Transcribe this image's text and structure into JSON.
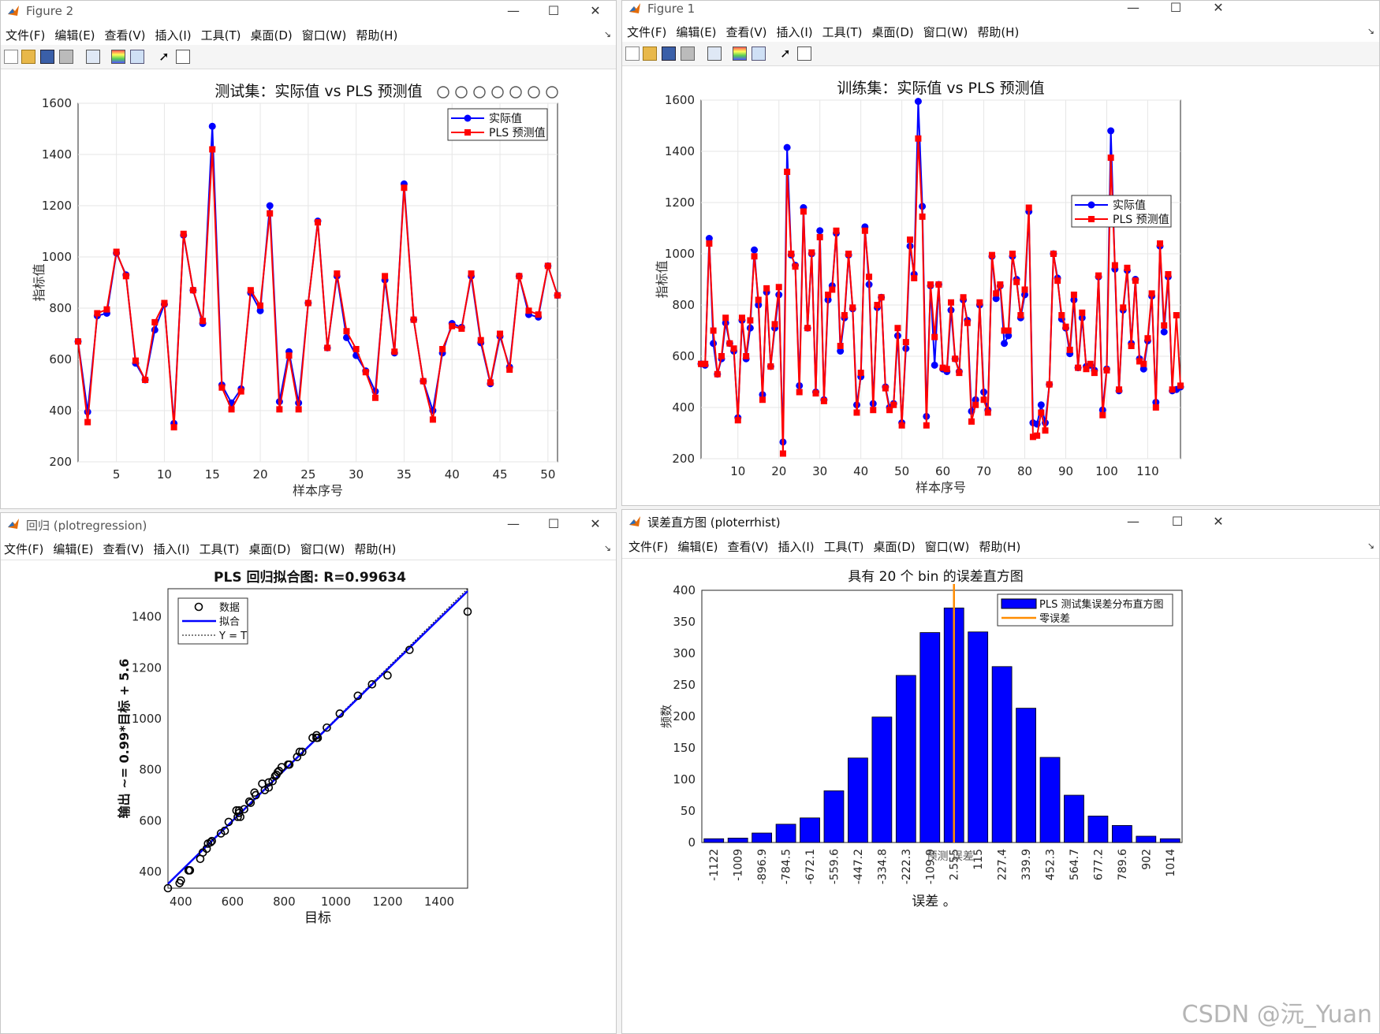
{
  "watermark": "CSDN @沅_Yuan",
  "menus": [
    "文件(F)",
    "编辑(E)",
    "查看(V)",
    "插入(I)",
    "工具(T)",
    "桌面(D)",
    "窗口(W)",
    "帮助(H)"
  ],
  "win_controls": {
    "minimize": "—",
    "maximize": "☐",
    "close": "✕",
    "dock": "↘"
  },
  "windows": {
    "fig2": {
      "title": "Figure 2"
    },
    "fig1": {
      "title": "Figure 1"
    },
    "regression": {
      "title": "回归 (plotregression)"
    },
    "errhist": {
      "title": "误差直方图 (ploterrhist)"
    }
  },
  "chart_data": [
    {
      "id": "test",
      "type": "line",
      "title": "测试集：实际值 vs PLS 预测值",
      "xlabel": "样本序号",
      "ylabel": "指标值",
      "xlim": [
        1,
        51
      ],
      "ylim": [
        200,
        1600
      ],
      "xticks": [
        5,
        10,
        15,
        20,
        25,
        30,
        35,
        40,
        45,
        50
      ],
      "yticks": [
        200,
        400,
        600,
        800,
        1000,
        1200,
        1400,
        1600
      ],
      "grid": true,
      "legend_position": "top-right",
      "colors": {
        "actual": "#0000ff",
        "pred": "#ff0000"
      },
      "series": [
        {
          "name": "实际值",
          "marker": "circle",
          "values": [
            670,
            395,
            770,
            780,
            1015,
            930,
            585,
            520,
            715,
            815,
            350,
            1085,
            870,
            740,
            1510,
            500,
            430,
            485,
            860,
            790,
            1200,
            435,
            630,
            430,
            820,
            1140,
            645,
            925,
            685,
            615,
            555,
            475,
            910,
            625,
            1285,
            755,
            515,
            400,
            625,
            740,
            725,
            925,
            665,
            505,
            690,
            570,
            925,
            775,
            765,
            965,
            850
          ]
        },
        {
          "name": "PLS 预测值",
          "marker": "square",
          "values": [
            670,
            355,
            780,
            795,
            1020,
            925,
            595,
            520,
            745,
            820,
            335,
            1090,
            870,
            750,
            1420,
            490,
            405,
            475,
            870,
            810,
            1170,
            405,
            615,
            405,
            820,
            1135,
            645,
            935,
            710,
            640,
            550,
            450,
            925,
            630,
            1270,
            755,
            515,
            365,
            640,
            730,
            720,
            935,
            675,
            510,
            700,
            560,
            925,
            790,
            775,
            965,
            850
          ]
        }
      ]
    },
    {
      "id": "train",
      "type": "line",
      "title": "训练集：实际值 vs PLS 预测值",
      "xlabel": "样本序号",
      "ylabel": "指标值",
      "xlim": [
        1,
        118
      ],
      "ylim": [
        200,
        1600
      ],
      "xticks": [
        10,
        20,
        30,
        40,
        50,
        60,
        70,
        80,
        90,
        100,
        110
      ],
      "yticks": [
        200,
        400,
        600,
        800,
        1000,
        1200,
        1400,
        1600
      ],
      "grid": true,
      "legend_position": "right",
      "colors": {
        "actual": "#0000ff",
        "pred": "#ff0000"
      },
      "series": [
        {
          "name": "实际值",
          "marker": "circle",
          "values": [
            570,
            565,
            1060,
            650,
            530,
            590,
            730,
            650,
            620,
            360,
            740,
            590,
            710,
            1015,
            800,
            450,
            850,
            560,
            710,
            840,
            265,
            1415,
            995,
            955,
            485,
            1180,
            710,
            1000,
            460,
            1090,
            430,
            820,
            875,
            1080,
            620,
            750,
            995,
            785,
            410,
            520,
            1105,
            880,
            415,
            790,
            830,
            480,
            400,
            415,
            680,
            340,
            630,
            1030,
            920,
            1595,
            1185,
            365,
            875,
            565,
            880,
            550,
            540,
            780,
            590,
            540,
            820,
            740,
            385,
            430,
            800,
            460,
            390,
            990,
            825,
            875,
            650,
            680,
            990,
            900,
            750,
            840,
            1165,
            340,
            335,
            410,
            340,
            490,
            1000,
            905,
            745,
            710,
            610,
            820,
            555,
            750,
            560,
            565,
            545,
            910,
            390,
            550,
            1480,
            940,
            465,
            780,
            935,
            650,
            900,
            590,
            550,
            660,
            835,
            420,
            1030,
            695,
            910,
            465,
            470,
            480
          ]
        },
        {
          "name": "PLS 预测值",
          "marker": "square",
          "values": [
            570,
            570,
            1040,
            700,
            530,
            600,
            750,
            650,
            630,
            350,
            750,
            600,
            740,
            990,
            820,
            430,
            865,
            560,
            725,
            870,
            220,
            1320,
            1000,
            950,
            460,
            1165,
            710,
            1005,
            455,
            1065,
            425,
            840,
            860,
            1090,
            640,
            760,
            1000,
            790,
            380,
            535,
            1090,
            910,
            390,
            800,
            830,
            475,
            390,
            410,
            710,
            330,
            655,
            1055,
            905,
            1450,
            1145,
            330,
            880,
            675,
            880,
            555,
            550,
            810,
            590,
            535,
            830,
            730,
            345,
            410,
            810,
            430,
            380,
            995,
            845,
            880,
            700,
            700,
            1000,
            890,
            760,
            860,
            1180,
            285,
            290,
            380,
            310,
            490,
            1000,
            895,
            760,
            715,
            625,
            840,
            555,
            770,
            550,
            570,
            535,
            915,
            370,
            545,
            1375,
            955,
            470,
            790,
            945,
            640,
            895,
            580,
            570,
            670,
            845,
            400,
            1040,
            720,
            920,
            470,
            760,
            485
          ]
        }
      ]
    },
    {
      "id": "regression",
      "type": "scatter",
      "title": "PLS 回归拟合图: R=0.99634",
      "xlabel": "目标",
      "ylabel": "输出 ~= 0.99*目标 + 5.6",
      "xlim": [
        350,
        1510
      ],
      "ylim": [
        335,
        1510
      ],
      "xticks": [
        400,
        600,
        800,
        1000,
        1200,
        1400
      ],
      "yticks": [
        400,
        600,
        800,
        1000,
        1200,
        1400
      ],
      "grid": false,
      "legend_position": "top-left",
      "legend": [
        "数据",
        "拟合",
        "Y = T"
      ],
      "fit": {
        "slope": 0.99,
        "intercept": 5.6,
        "color": "#0000ff"
      },
      "points": [
        [
          350,
          335
        ],
        [
          395,
          355
        ],
        [
          400,
          365
        ],
        [
          430,
          405
        ],
        [
          430,
          405
        ],
        [
          435,
          405
        ],
        [
          475,
          450
        ],
        [
          485,
          475
        ],
        [
          500,
          490
        ],
        [
          505,
          510
        ],
        [
          515,
          515
        ],
        [
          520,
          520
        ],
        [
          555,
          550
        ],
        [
          570,
          560
        ],
        [
          585,
          595
        ],
        [
          615,
          640
        ],
        [
          620,
          615
        ],
        [
          625,
          630
        ],
        [
          625,
          640
        ],
        [
          630,
          615
        ],
        [
          645,
          645
        ],
        [
          665,
          675
        ],
        [
          670,
          670
        ],
        [
          685,
          710
        ],
        [
          690,
          700
        ],
        [
          715,
          745
        ],
        [
          725,
          720
        ],
        [
          740,
          730
        ],
        [
          740,
          750
        ],
        [
          755,
          755
        ],
        [
          765,
          775
        ],
        [
          770,
          780
        ],
        [
          775,
          790
        ],
        [
          780,
          795
        ],
        [
          790,
          810
        ],
        [
          815,
          820
        ],
        [
          820,
          820
        ],
        [
          850,
          850
        ],
        [
          860,
          870
        ],
        [
          870,
          870
        ],
        [
          910,
          925
        ],
        [
          925,
          935
        ],
        [
          925,
          925
        ],
        [
          930,
          925
        ],
        [
          965,
          965
        ],
        [
          1015,
          1020
        ],
        [
          1085,
          1090
        ],
        [
          1140,
          1135
        ],
        [
          1200,
          1170
        ],
        [
          1285,
          1270
        ],
        [
          1510,
          1420
        ]
      ]
    },
    {
      "id": "errhist",
      "type": "bar",
      "title": "具有 20 个 bin 的误差直方图",
      "xlabel": "误差 。",
      "ylabel": "频数",
      "overlay_label": "预测 误差",
      "ylim": [
        0,
        400
      ],
      "yticks": [
        0,
        50,
        100,
        150,
        200,
        250,
        300,
        350,
        400
      ],
      "categories": [
        "-1122",
        "-1009",
        "-896.9",
        "-784.5",
        "-672.1",
        "-559.6",
        "-447.2",
        "-334.8",
        "-222.3",
        "-109.9",
        "2.555",
        "115",
        "227.4",
        "339.9",
        "452.3",
        "564.7",
        "677.2",
        "789.6",
        "902",
        "1014"
      ],
      "values": [
        6,
        7,
        15,
        29,
        39,
        82,
        134,
        199,
        265,
        333,
        372,
        334,
        279,
        213,
        135,
        75,
        42,
        27,
        10,
        6
      ],
      "zero_error_index": 10,
      "legend_position": "top-right",
      "legend": [
        "PLS 测试集误差分布直方图",
        "零误差"
      ],
      "colors": {
        "bar": "#0000ff",
        "zero": "#ff8c00"
      }
    }
  ]
}
